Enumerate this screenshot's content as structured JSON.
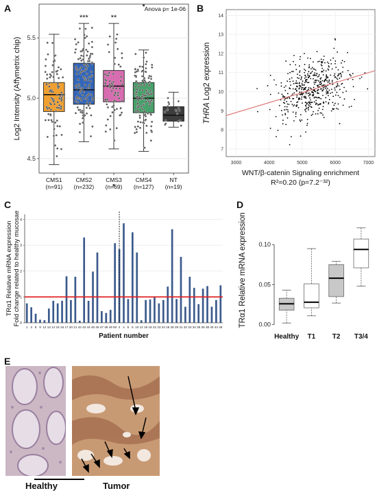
{
  "panels": {
    "a": "A",
    "b": "B",
    "c": "C",
    "d": "D",
    "e": "E"
  },
  "chart_data": [
    {
      "id": "A",
      "type": "box",
      "annotation": "Anova p= 1e-06",
      "ylabel": "Log2 Intensity (Affymetrix chip)",
      "ylim": [
        4.38,
        5.78
      ],
      "yticks": [
        4.5,
        5.0,
        5.5
      ],
      "categories": [
        "CMS1",
        "CMS2",
        "CMS3",
        "CMS4",
        "NT"
      ],
      "category_counts": [
        "(n=91)",
        "(n=232)",
        "(n=69)",
        "(n=127)",
        "(n=19)"
      ],
      "colors": [
        "#f0a030",
        "#3466b8",
        "#d86cb0",
        "#48a06a",
        "#3d3d3d"
      ],
      "significance": [
        "",
        "***",
        "**",
        "",
        ""
      ],
      "boxes": [
        {
          "whisker_low": 4.45,
          "q1": 4.89,
          "median": 5.03,
          "q3": 5.13,
          "whisker_high": 5.53
        },
        {
          "whisker_low": 4.64,
          "q1": 4.95,
          "median": 5.07,
          "q3": 5.29,
          "whisker_high": 5.62
        },
        {
          "whisker_low": 4.58,
          "q1": 4.97,
          "median": 5.1,
          "q3": 5.23,
          "whisker_high": 5.62
        },
        {
          "whisker_low": 4.56,
          "q1": 4.88,
          "median": 5.0,
          "q3": 5.13,
          "whisker_high": 5.4
        },
        {
          "whisker_low": 4.76,
          "q1": 4.81,
          "median": 4.86,
          "q3": 4.93,
          "whisker_high": 5.05
        }
      ],
      "outliers": [
        [],
        [],
        [
          4.28
        ],
        [
          5.77
        ],
        []
      ]
    },
    {
      "id": "B",
      "type": "scatter",
      "xlabel": "WNT/β-catenin Signaling enrichment",
      "ylabel_italic": "THRA",
      "ylabel_rest": " Log2 expression",
      "stat_text": "R²=0.20 (p=7.2⁻³²)",
      "xlim": [
        2700,
        7200
      ],
      "ylim": [
        6.6,
        14.3
      ],
      "xticks": [
        3000,
        4000,
        5000,
        6000,
        7000
      ],
      "yticks": [
        7,
        8,
        9,
        10,
        11,
        12,
        13,
        14
      ],
      "n_points": 520,
      "fit_line": {
        "x": [
          2700,
          7200
        ],
        "y": [
          8.75,
          11.1
        ]
      },
      "fit_color": "#e08080"
    },
    {
      "id": "C",
      "type": "bar",
      "ylabel_line1": "TRα1 Relative mRNA expression",
      "ylabel_line2": "Fold change related to healthy mucosae",
      "xlabel": "Patient number",
      "ylim": [
        0,
        4.2
      ],
      "yticks": [
        0,
        1,
        2,
        3,
        4
      ],
      "reference_line": 1,
      "reference_color": "#e02020",
      "bar_color": "#3b5a8c",
      "divider_after_index": 22,
      "categories": [
        "1",
        "3",
        "8",
        "9",
        "12",
        "13",
        "14",
        "15",
        "16",
        "17",
        "20",
        "21",
        "42",
        "43",
        "44",
        "45",
        "46",
        "47",
        "48",
        "49",
        "50",
        "2",
        "4",
        "5",
        "6",
        "10",
        "12",
        "18",
        "19",
        "22",
        "23",
        "24",
        "26",
        "28",
        "29",
        "31",
        "32",
        "33",
        "34",
        "35",
        "36",
        "38",
        "40",
        "44",
        "46"
      ],
      "values": [
        0.75,
        0.6,
        0.35,
        0.12,
        0.1,
        0.55,
        0.85,
        0.75,
        0.85,
        1.8,
        0.88,
        1.78,
        0.08,
        3.3,
        0.85,
        1.98,
        2.72,
        0.45,
        0.38,
        0.5,
        3.08,
        2.85,
        3.85,
        0.92,
        3.5,
        2.72,
        0.1,
        0.88,
        0.9,
        1.0,
        0.75,
        0.88,
        1.4,
        3.62,
        0.92,
        2.55,
        0.62,
        1.78,
        1.35,
        0.72,
        1.32,
        1.42,
        0.62,
        0.88,
        1.45
      ]
    },
    {
      "id": "D",
      "type": "box",
      "ylabel": "TRα1 Relative mRNA expression",
      "ylim": [
        -0.002,
        0.138
      ],
      "yticks": [
        0.0,
        0.05,
        0.1
      ],
      "ytick_labels": [
        "0.00",
        "0.05",
        "0.10"
      ],
      "categories": [
        "Healthy",
        "T1",
        "T2",
        "T3/4"
      ],
      "colors": [
        "#c8c8c8",
        "#ffffff",
        "#c8c8c8",
        "#ffffff"
      ],
      "boxes": [
        {
          "whisker_low": 0.002,
          "q1": 0.018,
          "median": 0.026,
          "q3": 0.033,
          "whisker_high": 0.043
        },
        {
          "whisker_low": 0.011,
          "q1": 0.021,
          "median": 0.028,
          "q3": 0.051,
          "whisker_high": 0.095
        },
        {
          "whisker_low": 0.027,
          "q1": 0.035,
          "median": 0.058,
          "q3": 0.075,
          "whisker_high": 0.079
        },
        {
          "whisker_low": 0.048,
          "q1": 0.071,
          "median": 0.094,
          "q3": 0.107,
          "whisker_high": 0.121
        }
      ]
    }
  ],
  "images": {
    "healthy_label": "Healthy",
    "tumor_label": "Tumor"
  }
}
